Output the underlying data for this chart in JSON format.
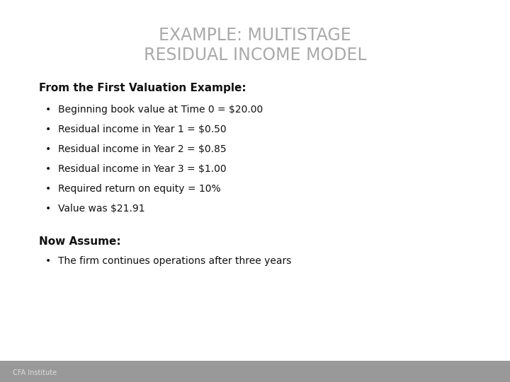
{
  "title_line1": "EXAMPLE: MULTISTAGE",
  "title_line2": "RESIDUAL INCOME MODEL",
  "title_color": "#aaaaaa",
  "title_fontsize": 17,
  "section1_header": "From the First Valuation Example:",
  "section1_bullets": [
    "Beginning book value at Time 0 = $20.00",
    "Residual income in Year 1 = $0.50",
    "Residual income in Year 2 = $0.85",
    "Residual income in Year 3 = $1.00",
    "Required return on equity = 10%",
    "Value was $21.91"
  ],
  "section2_header": "Now Assume:",
  "section2_bullets": [
    "The firm continues operations after three years"
  ],
  "footer_text": "CFA Institute",
  "bg_color": "#ffffff",
  "footer_bg_color": "#999999",
  "header_fontsize": 11,
  "bullet_fontsize": 10,
  "text_color": "#111111",
  "footer_fontsize": 7
}
